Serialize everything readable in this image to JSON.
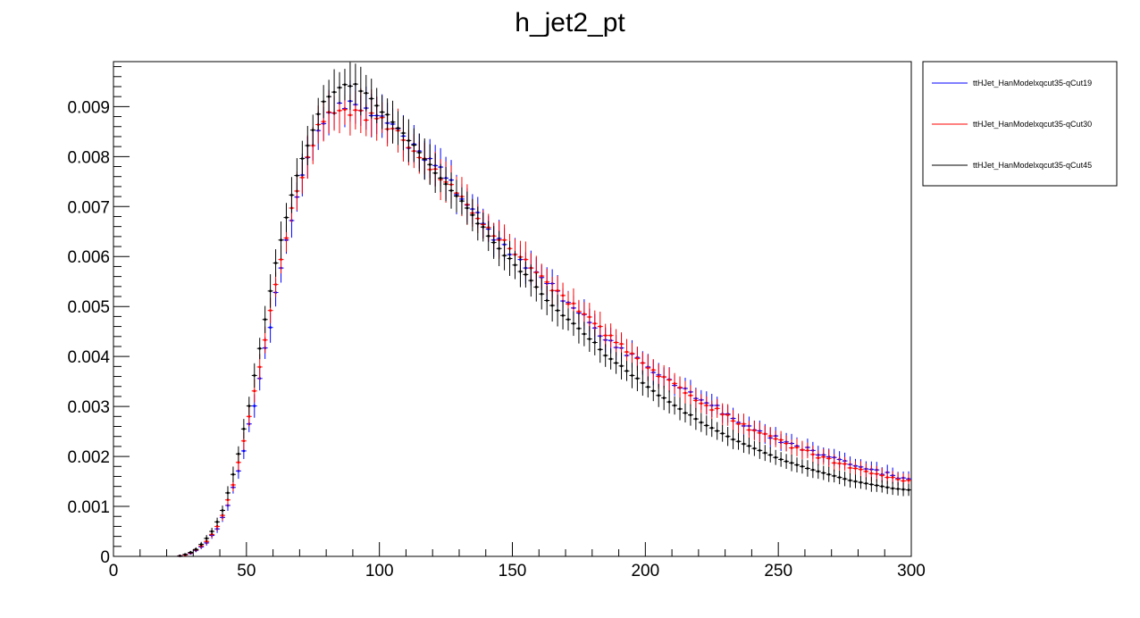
{
  "chart_data": {
    "type": "scatter",
    "title": "h_jet2_pt",
    "xlabel": "",
    "ylabel": "",
    "xlim": [
      0,
      300
    ],
    "ylim": [
      0,
      0.0099
    ],
    "x_ticks": [
      "0",
      "50",
      "100",
      "150",
      "200",
      "250",
      "300"
    ],
    "y_ticks": [
      "0",
      "0.001",
      "0.002",
      "0.003",
      "0.004",
      "0.005",
      "0.006",
      "0.007",
      "0.008",
      "0.009"
    ],
    "grid": false,
    "legend_position": "top-right-outside",
    "bin_width": 2,
    "x": [
      1,
      3,
      5,
      7,
      9,
      11,
      13,
      15,
      17,
      19,
      21,
      23,
      25,
      27,
      29,
      31,
      33,
      35,
      37,
      39,
      41,
      43,
      45,
      47,
      49,
      51,
      53,
      55,
      57,
      59,
      61,
      63,
      65,
      67,
      69,
      71,
      73,
      75,
      77,
      79,
      81,
      83,
      85,
      87,
      89,
      91,
      93,
      95,
      97,
      99,
      101,
      103,
      105,
      107,
      109,
      111,
      113,
      115,
      117,
      119,
      121,
      123,
      125,
      127,
      129,
      131,
      133,
      135,
      137,
      139,
      141,
      143,
      145,
      147,
      149,
      151,
      153,
      155,
      157,
      159,
      161,
      163,
      165,
      167,
      169,
      171,
      173,
      175,
      177,
      179,
      181,
      183,
      185,
      187,
      189,
      191,
      193,
      195,
      197,
      199,
      201,
      203,
      205,
      207,
      209,
      211,
      213,
      215,
      217,
      219,
      221,
      223,
      225,
      227,
      229,
      231,
      233,
      235,
      237,
      239,
      241,
      243,
      245,
      247,
      249,
      251,
      253,
      255,
      257,
      259,
      261,
      263,
      265,
      267,
      269,
      271,
      273,
      275,
      277,
      279,
      281,
      283,
      285,
      287,
      289,
      291,
      293,
      295,
      297,
      299
    ],
    "series": [
      {
        "name": "ttHJet_HanModelxqcut35-qCut19",
        "color": "#0000ff",
        "values": [
          0,
          0,
          0,
          0,
          0,
          0,
          0,
          0,
          0,
          0,
          0,
          0,
          1e-05,
          3e-05,
          6e-05,
          0.00012,
          0.00019,
          0.00027,
          0.00042,
          0.00055,
          0.00078,
          0.00102,
          0.00138,
          0.00171,
          0.00211,
          0.00265,
          0.00301,
          0.00356,
          0.00417,
          0.00458,
          0.00528,
          0.00577,
          0.00633,
          0.00672,
          0.00719,
          0.00763,
          0.00798,
          0.00822,
          0.00852,
          0.00866,
          0.00888,
          0.00887,
          0.00907,
          0.00896,
          0.00911,
          0.00904,
          0.00892,
          0.00897,
          0.00882,
          0.00882,
          0.00881,
          0.00867,
          0.00865,
          0.00856,
          0.00841,
          0.00817,
          0.00825,
          0.00811,
          0.00793,
          0.00796,
          0.00782,
          0.00779,
          0.00757,
          0.00753,
          0.00724,
          0.00715,
          0.00703,
          0.00695,
          0.00688,
          0.00666,
          0.00655,
          0.00633,
          0.00636,
          0.00624,
          0.00604,
          0.00604,
          0.00594,
          0.00577,
          0.00577,
          0.00569,
          0.00558,
          0.00546,
          0.00546,
          0.00531,
          0.00511,
          0.00508,
          0.00497,
          0.00487,
          0.00484,
          0.00468,
          0.00457,
          0.00441,
          0.00433,
          0.00432,
          0.00418,
          0.00417,
          0.00402,
          0.00405,
          0.00398,
          0.00387,
          0.00379,
          0.00368,
          0.00363,
          0.00359,
          0.00354,
          0.00342,
          0.00337,
          0.00336,
          0.00329,
          0.00316,
          0.00313,
          0.00307,
          0.00302,
          0.00302,
          0.00285,
          0.00285,
          0.00276,
          0.00268,
          0.00261,
          0.00261,
          0.00253,
          0.00251,
          0.00245,
          0.00237,
          0.00241,
          0.00228,
          0.00229,
          0.00226,
          0.00221,
          0.00213,
          0.00218,
          0.00212,
          0.00203,
          0.00203,
          0.00199,
          0.00198,
          0.00194,
          0.00191,
          0.00184,
          0.00181,
          0.00179,
          0.00175,
          0.00174,
          0.00173,
          0.00164,
          0.00168,
          0.00162,
          0.00156,
          0.00157,
          0.00155
        ]
      },
      {
        "name": "ttHJet_HanModelxqcut35-qCut30",
        "color": "#ff0000",
        "values": [
          0,
          0,
          0,
          0,
          0,
          0,
          0,
          0,
          0,
          0,
          0,
          0,
          1e-05,
          3e-05,
          7e-05,
          0.00013,
          0.00021,
          0.0003,
          0.00044,
          0.0006,
          0.00082,
          0.00113,
          0.00143,
          0.00188,
          0.00231,
          0.0028,
          0.00331,
          0.00379,
          0.00433,
          0.00492,
          0.00544,
          0.00594,
          0.00637,
          0.00697,
          0.00731,
          0.00758,
          0.00799,
          0.00822,
          0.00864,
          0.0087,
          0.00889,
          0.00887,
          0.00892,
          0.00894,
          0.00883,
          0.00893,
          0.00892,
          0.00873,
          0.00887,
          0.00876,
          0.00878,
          0.00855,
          0.00856,
          0.00852,
          0.00833,
          0.00818,
          0.00811,
          0.00798,
          0.00796,
          0.00774,
          0.00775,
          0.00754,
          0.00749,
          0.00744,
          0.00727,
          0.0072,
          0.00704,
          0.00687,
          0.00676,
          0.00664,
          0.00658,
          0.00641,
          0.00633,
          0.00633,
          0.00616,
          0.00604,
          0.00599,
          0.00594,
          0.00577,
          0.00568,
          0.00561,
          0.00549,
          0.00532,
          0.00532,
          0.00522,
          0.00505,
          0.00506,
          0.0049,
          0.00485,
          0.00479,
          0.00466,
          0.0046,
          0.00442,
          0.00442,
          0.00428,
          0.00425,
          0.00409,
          0.00406,
          0.00396,
          0.00387,
          0.00377,
          0.00373,
          0.0036,
          0.00359,
          0.00353,
          0.00346,
          0.00338,
          0.00327,
          0.00322,
          0.00312,
          0.00306,
          0.00302,
          0.00293,
          0.00296,
          0.00284,
          0.00283,
          0.00271,
          0.00265,
          0.00265,
          0.00253,
          0.00252,
          0.00247,
          0.00245,
          0.00241,
          0.00235,
          0.00233,
          0.00226,
          0.00217,
          0.00218,
          0.00213,
          0.00212,
          0.00204,
          0.00197,
          0.00199,
          0.00196,
          0.00187,
          0.00186,
          0.00185,
          0.00177,
          0.00176,
          0.00174,
          0.0017,
          0.00166,
          0.00165,
          0.00162,
          0.00158,
          0.00158,
          0.00154,
          0.00151,
          0.00152
        ]
      },
      {
        "name": "ttHJet_HanModelxqcut35-qCut45",
        "color": "#000000",
        "values": [
          0,
          0,
          0,
          0,
          0,
          0,
          0,
          0,
          0,
          0,
          0,
          0,
          1e-05,
          4e-05,
          8e-05,
          0.00014,
          0.00024,
          0.00036,
          0.0005,
          0.00069,
          0.00092,
          0.00127,
          0.00164,
          0.00205,
          0.00255,
          0.00301,
          0.00362,
          0.00416,
          0.00474,
          0.00531,
          0.00587,
          0.00633,
          0.00678,
          0.00723,
          0.00762,
          0.00796,
          0.00822,
          0.00853,
          0.00885,
          0.0091,
          0.0092,
          0.00929,
          0.00938,
          0.00944,
          0.00941,
          0.00945,
          0.00931,
          0.00927,
          0.00916,
          0.00902,
          0.00889,
          0.00884,
          0.00869,
          0.00857,
          0.00847,
          0.00832,
          0.00823,
          0.00808,
          0.00795,
          0.00784,
          0.00767,
          0.00757,
          0.00745,
          0.00732,
          0.00721,
          0.00711,
          0.00697,
          0.00683,
          0.00666,
          0.00659,
          0.00641,
          0.00628,
          0.00616,
          0.00602,
          0.00596,
          0.00583,
          0.0057,
          0.00564,
          0.00552,
          0.00539,
          0.00525,
          0.00512,
          0.00502,
          0.00492,
          0.00482,
          0.00474,
          0.00466,
          0.00456,
          0.00445,
          0.00435,
          0.00428,
          0.00414,
          0.00402,
          0.00395,
          0.00387,
          0.00381,
          0.00371,
          0.00362,
          0.00356,
          0.00347,
          0.00339,
          0.00331,
          0.00322,
          0.00317,
          0.00309,
          0.00302,
          0.00295,
          0.00287,
          0.00283,
          0.00275,
          0.00268,
          0.00262,
          0.00257,
          0.00251,
          0.00246,
          0.0024,
          0.00234,
          0.0023,
          0.00225,
          0.00221,
          0.00216,
          0.00212,
          0.00207,
          0.00203,
          0.00198,
          0.00194,
          0.0019,
          0.00187,
          0.00183,
          0.0018,
          0.00176,
          0.00173,
          0.0017,
          0.00167,
          0.00164,
          0.00161,
          0.00158,
          0.00155,
          0.00152,
          0.0015,
          0.00148,
          0.00146,
          0.00144,
          0.00142,
          0.0014,
          0.00138,
          0.00136,
          0.00135,
          0.00134,
          0.00133
        ]
      }
    ]
  }
}
